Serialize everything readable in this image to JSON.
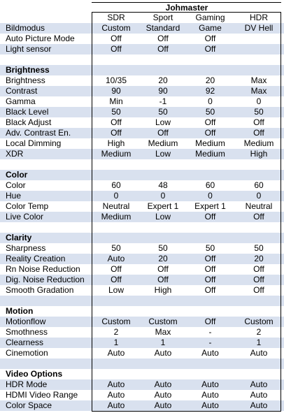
{
  "title": "Johmaster",
  "columns": [
    "SDR",
    "Sport",
    "Gaming",
    "HDR"
  ],
  "rows": [
    {
      "label": "Bildmodus",
      "values": [
        "Custom",
        "Standard",
        "Game",
        "DV Hell"
      ]
    },
    {
      "label": "Auto Picture Mode",
      "values": [
        "Off",
        "Off",
        "Off",
        ""
      ]
    },
    {
      "label": "Light sensor",
      "values": [
        "Off",
        "Off",
        "Off",
        ""
      ]
    },
    {
      "label": "",
      "values": [
        "",
        "",
        "",
        ""
      ]
    },
    {
      "label": "Brightness",
      "section": true,
      "values": [
        "",
        "",
        "",
        ""
      ]
    },
    {
      "label": "Brightness",
      "values": [
        "10/35",
        "20",
        "20",
        "Max"
      ]
    },
    {
      "label": "Contrast",
      "values": [
        "90",
        "90",
        "92",
        "Max"
      ]
    },
    {
      "label": "Gamma",
      "values": [
        "Min",
        "-1",
        "0",
        "0"
      ]
    },
    {
      "label": "Black Level",
      "values": [
        "50",
        "50",
        "50",
        "50"
      ]
    },
    {
      "label": "Black Adjust",
      "values": [
        "Off",
        "Low",
        "Off",
        "Off"
      ]
    },
    {
      "label": "Adv. Contrast En.",
      "values": [
        "Off",
        "Off",
        "Off",
        "Off"
      ]
    },
    {
      "label": "Local Dimming",
      "values": [
        "High",
        "Medium",
        "Medium",
        "Medium"
      ]
    },
    {
      "label": "XDR",
      "values": [
        "Medium",
        "Low",
        "Medium",
        "High"
      ]
    },
    {
      "label": "",
      "values": [
        "",
        "",
        "",
        ""
      ]
    },
    {
      "label": "Color",
      "section": true,
      "values": [
        "",
        "",
        "",
        ""
      ]
    },
    {
      "label": "Color",
      "values": [
        "60",
        "48",
        "60",
        "60"
      ]
    },
    {
      "label": "Hue",
      "values": [
        "0",
        "0",
        "0",
        "0"
      ]
    },
    {
      "label": "Color Temp",
      "values": [
        "Neutral",
        "Expert 1",
        "Expert 1",
        "Neutral"
      ]
    },
    {
      "label": "Live Color",
      "values": [
        "Medium",
        "Low",
        "Off",
        "Off"
      ]
    },
    {
      "label": "",
      "values": [
        "",
        "",
        "",
        ""
      ]
    },
    {
      "label": "Clarity",
      "section": true,
      "values": [
        "",
        "",
        "",
        ""
      ]
    },
    {
      "label": "Sharpness",
      "values": [
        "50",
        "50",
        "50",
        "50"
      ]
    },
    {
      "label": "Reality Creation",
      "values": [
        "Auto",
        "20",
        "Off",
        "20"
      ]
    },
    {
      "label": "Rn Noise Reduction",
      "values": [
        "Off",
        "Off",
        "Off",
        "Off"
      ]
    },
    {
      "label": "Dig. Noise Reduction",
      "values": [
        "Off",
        "Off",
        "Off",
        "Off"
      ]
    },
    {
      "label": "Smooth Gradation",
      "values": [
        "Low",
        "High",
        "Off",
        "Off"
      ]
    },
    {
      "label": "",
      "values": [
        "",
        "",
        "",
        ""
      ]
    },
    {
      "label": "Motion",
      "section": true,
      "values": [
        "",
        "",
        "",
        ""
      ]
    },
    {
      "label": "Motionflow",
      "values": [
        "Custom",
        "Custom",
        "Off",
        "Custom"
      ]
    },
    {
      "label": "Smothness",
      "values": [
        "2",
        "Max",
        "-",
        "2"
      ]
    },
    {
      "label": "Clearness",
      "values": [
        "1",
        "1",
        "-",
        "1"
      ]
    },
    {
      "label": "Cinemotion",
      "values": [
        "Auto",
        "Auto",
        "Auto",
        "Auto"
      ]
    },
    {
      "label": "",
      "values": [
        "",
        "",
        "",
        ""
      ]
    },
    {
      "label": "Video Options",
      "section": true,
      "values": [
        "",
        "",
        "",
        ""
      ]
    },
    {
      "label": "HDR Mode",
      "values": [
        "Auto",
        "Auto",
        "Auto",
        "Auto"
      ]
    },
    {
      "label": "HDMI Video Range",
      "values": [
        "Auto",
        "Auto",
        "Auto",
        "Auto"
      ]
    },
    {
      "label": "Color Space",
      "values": [
        "Auto",
        "Auto",
        "Auto",
        "Auto"
      ]
    }
  ],
  "colors": {
    "band": "#d9e1ef",
    "text": "#000000"
  }
}
